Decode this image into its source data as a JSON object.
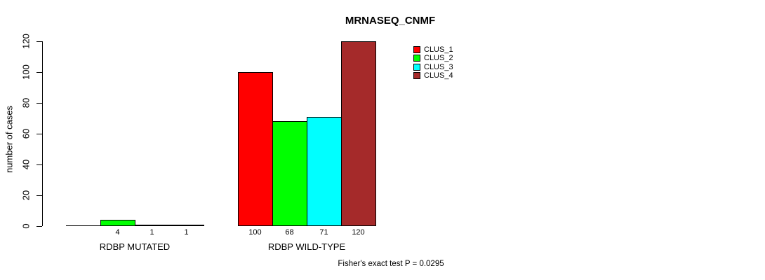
{
  "chart_data": {
    "type": "bar",
    "title": "MRNASEQ_CNMF",
    "ylabel": "number of cases",
    "xlabel": "",
    "ylim": [
      0,
      120
    ],
    "yticks": [
      0,
      20,
      40,
      60,
      80,
      100,
      120
    ],
    "grid": false,
    "legend_position": "top-right-inside",
    "categories": [
      "RDBP MUTATED",
      "RDBP WILD-TYPE"
    ],
    "series": [
      {
        "name": "CLUS_1",
        "color": "#FF0000",
        "values": [
          0,
          100
        ]
      },
      {
        "name": "CLUS_2",
        "color": "#00FF00",
        "values": [
          4,
          68
        ]
      },
      {
        "name": "CLUS_3",
        "color": "#00FFFF",
        "values": [
          1,
          71
        ]
      },
      {
        "name": "CLUS_4",
        "color": "#A52A2A",
        "values": [
          1,
          120
        ]
      }
    ],
    "bar_value_labels": [
      [
        null,
        "4",
        "1",
        "1"
      ],
      [
        "100",
        "68",
        "71",
        "120"
      ]
    ],
    "annotation": "Fisher's exact test P = 0.0295"
  }
}
